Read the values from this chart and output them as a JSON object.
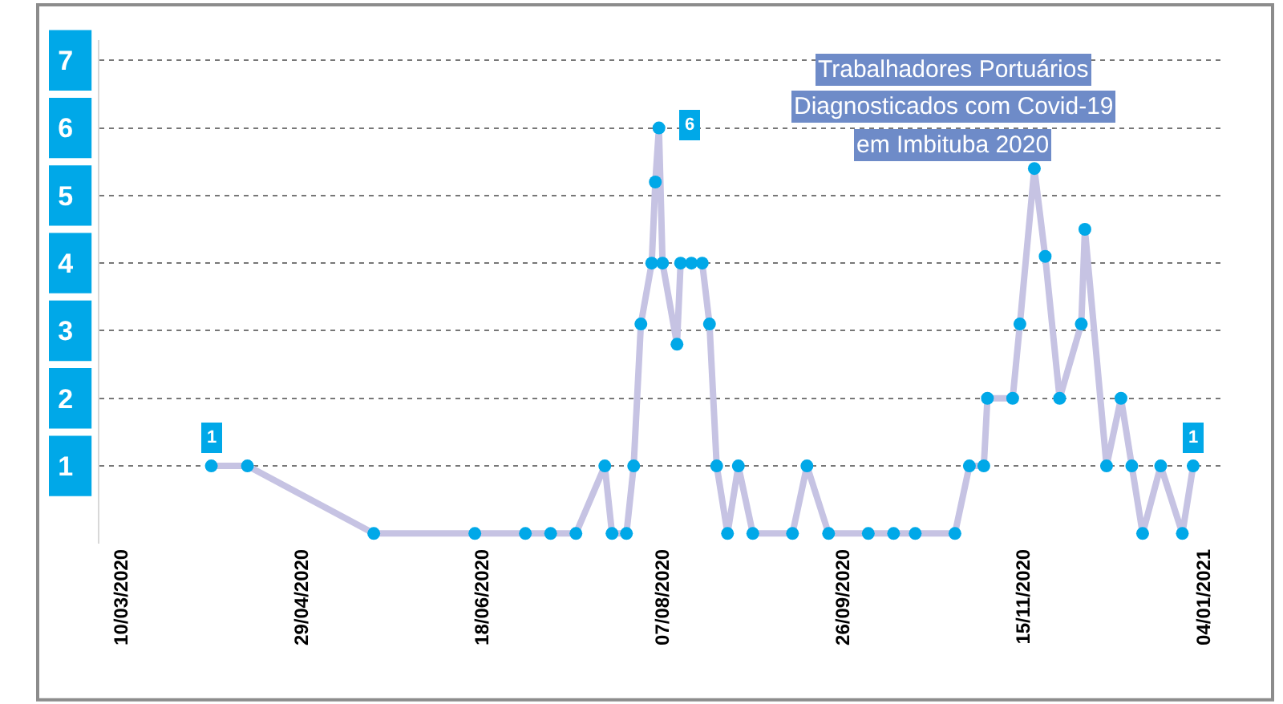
{
  "chart_data": {
    "type": "line",
    "title": "Trabalhadores Portuários\nDiagnosticados com Covid-19\nem Imbituba 2020",
    "x": [
      "2020-04-04",
      "2020-04-14",
      "2020-05-19",
      "2020-06-16",
      "2020-06-30",
      "2020-07-07",
      "2020-07-14",
      "2020-07-22",
      "2020-07-24",
      "2020-07-28",
      "2020-07-30",
      "2020-08-01",
      "2020-08-04",
      "2020-08-05",
      "2020-08-06",
      "2020-08-07",
      "2020-08-11",
      "2020-08-12",
      "2020-08-15",
      "2020-08-18",
      "2020-08-20",
      "2020-08-22",
      "2020-08-25",
      "2020-08-28",
      "2020-09-01",
      "2020-09-12",
      "2020-09-16",
      "2020-09-22",
      "2020-10-03",
      "2020-10-10",
      "2020-10-16",
      "2020-10-27",
      "2020-10-31",
      "2020-11-04",
      "2020-11-05",
      "2020-11-12",
      "2020-11-14",
      "2020-11-18",
      "2020-11-21",
      "2020-11-25",
      "2020-12-01",
      "2020-12-02",
      "2020-12-08",
      "2020-12-12",
      "2020-12-15",
      "2020-12-18",
      "2020-12-23",
      "2020-12-29",
      "2021-01-01"
    ],
    "series": [
      {
        "color": "#c6c3e3",
        "values": [
          1,
          1,
          0,
          0,
          0,
          0,
          0,
          1,
          0,
          0,
          1,
          3.1,
          4,
          5.2,
          6,
          4,
          2.8,
          4,
          4,
          4,
          3.1,
          1,
          0,
          1,
          0,
          0,
          1,
          0,
          0,
          0,
          0,
          0,
          1,
          1,
          2,
          2,
          3.1,
          5.4,
          4.1,
          2,
          3.1,
          4.5,
          1,
          2,
          1,
          0,
          1,
          0,
          1
        ],
        "value_labels": [
          "1",
          null,
          null,
          null,
          null,
          null,
          null,
          null,
          null,
          null,
          null,
          null,
          null,
          null,
          "6",
          null,
          null,
          null,
          null,
          null,
          null,
          null,
          null,
          null,
          null,
          null,
          null,
          null,
          null,
          null,
          null,
          null,
          null,
          null,
          null,
          null,
          null,
          null,
          null,
          null,
          null,
          null,
          null,
          null,
          null,
          null,
          null,
          null,
          "1"
        ]
      }
    ],
    "xlim": [
      "2020-03-04",
      "2021-01-09"
    ],
    "xticks": [
      {
        "value": "2020-03-10",
        "label": "10/03/2020"
      },
      {
        "value": "2020-04-29",
        "label": "29/04/2020"
      },
      {
        "value": "2020-06-18",
        "label": "18/06/2020"
      },
      {
        "value": "2020-08-07",
        "label": "07/08/2020"
      },
      {
        "value": "2020-09-26",
        "label": "26/09/2020"
      },
      {
        "value": "2020-11-15",
        "label": "15/11/2020"
      },
      {
        "value": "2021-01-04",
        "label": "04/01/2021"
      }
    ],
    "ylim": [
      -0.15,
      7.3
    ],
    "yticks": [
      1,
      2,
      3,
      4,
      5,
      6,
      7
    ],
    "grid": "y",
    "marker": "circle",
    "line_style": "solid",
    "legend": false
  }
}
